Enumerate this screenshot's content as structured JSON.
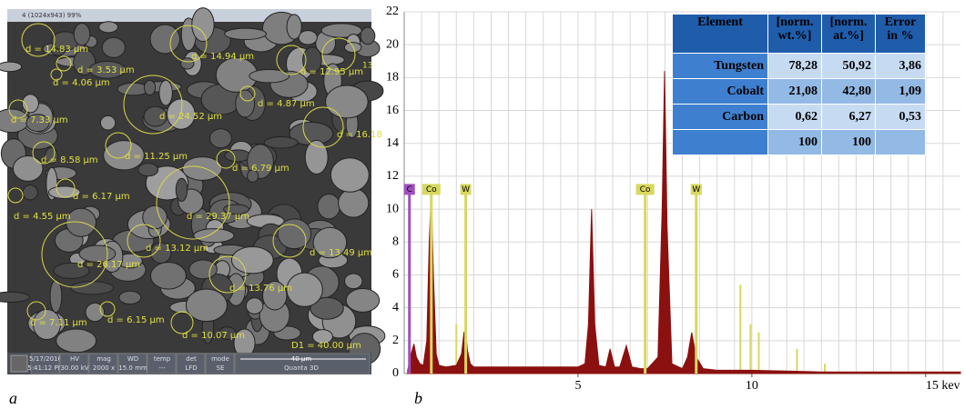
{
  "sem": {
    "window_title": "4 (1024x943) 99%",
    "annotations": [
      "d = 14.83 µm",
      "d = 3.53 µm",
      "d = 4.06 µm",
      "d = 14.94 µm",
      "d = 12.95 µm",
      "13",
      "d = 7.33 µm",
      "d = 24.52 µm",
      "d = 4.87 µm",
      "d = 16.18",
      "d = 8.58 µm",
      "d = 11.25 µm",
      "d = 6.79 µm",
      "d = 6.17 µm",
      "d = 4.55 µm",
      "d = 29.37 µm",
      "d = 13.12 µm",
      "d = 13.49 µm",
      "d = 26.17 µm",
      "d = 13.76 µm",
      "d = 7.11 µm",
      "d = 6.15 µm",
      "d = 10.07 µm",
      "D1 = 40.00 µm"
    ],
    "info": [
      [
        "5/17/2016",
        "5:41:12 PM"
      ],
      [
        "HV",
        "30.00 kV"
      ],
      [
        "mag",
        "2000 x"
      ],
      [
        "WD",
        "15.0 mm"
      ],
      [
        "temp",
        "---"
      ],
      [
        "det",
        "LFD"
      ],
      [
        "mode",
        "SE"
      ]
    ],
    "scale_bar": "40 µm",
    "instrument": "Quanta 3D"
  },
  "panel_labels": [
    "a",
    "b"
  ],
  "chart_data": {
    "type": "area",
    "x": [
      0.1,
      0.2,
      0.28,
      0.35,
      0.45,
      0.55,
      0.65,
      0.72,
      0.78,
      0.84,
      0.92,
      1.0,
      1.2,
      1.5,
      1.65,
      1.72,
      1.77,
      1.82,
      1.9,
      2.0,
      2.5,
      3,
      4,
      5,
      5.2,
      5.3,
      5.39,
      5.48,
      5.6,
      5.8,
      5.92,
      6.05,
      6.2,
      6.39,
      6.55,
      6.8,
      7.0,
      7.3,
      7.42,
      7.49,
      7.56,
      7.7,
      8.0,
      8.15,
      8.27,
      8.4,
      8.6,
      9,
      10,
      11,
      12,
      13,
      14,
      15,
      16
    ],
    "series": [
      {
        "color": "#8b1010",
        "values": [
          0.2,
          1.2,
          1.8,
          1.0,
          0.6,
          0.5,
          2.0,
          8,
          11,
          6,
          1.2,
          0.5,
          0.4,
          0.5,
          1.2,
          2.5,
          2.5,
          1.4,
          0.6,
          0.4,
          0.4,
          0.4,
          0.4,
          0.4,
          0.6,
          3,
          10,
          3,
          0.5,
          0.4,
          1.5,
          0.4,
          0.4,
          1.7,
          0.4,
          0.3,
          0.3,
          1,
          10,
          18.4,
          9,
          0.6,
          0.3,
          1,
          2.5,
          1,
          0.3,
          0.2,
          0.2,
          0.15,
          0.1,
          0.1,
          0.1,
          0.1,
          0.1
        ]
      }
    ],
    "markers": [
      {
        "label": "C",
        "x": 0.15,
        "height": 11.2,
        "color": "#a050c0"
      },
      {
        "label": "Co",
        "x": 0.78,
        "height": 11.2,
        "color": "#d8d860"
      },
      {
        "label": "W",
        "x": 1.77,
        "height": 11.2,
        "color": "#d8d860"
      },
      {
        "label": "Co",
        "x": 6.93,
        "height": 11.2,
        "color": "#d8d860"
      },
      {
        "label": "W",
        "x": 8.4,
        "height": 11.2,
        "color": "#d8d860"
      }
    ],
    "lines": [
      {
        "x": 9.67,
        "height": 5.4
      },
      {
        "x": 9.96,
        "height": 3.0
      },
      {
        "x": 10.2,
        "height": 2.5
      },
      {
        "x": 11.3,
        "height": 1.5
      },
      {
        "x": 12.1,
        "height": 0.6
      },
      {
        "x": 1.5,
        "height": 3.0
      }
    ],
    "line_color": "#d8d860",
    "xlim": [
      0,
      16
    ],
    "ylim": [
      0,
      22
    ],
    "xticks": [
      5,
      10,
      {
        "value": 15,
        "label": "15 kev"
      }
    ],
    "yticks": [
      0,
      2,
      4,
      6,
      8,
      10,
      12,
      14,
      16,
      18,
      20,
      22
    ],
    "grid": true,
    "xgrid_step": 0.5
  },
  "table": {
    "header": [
      "Element",
      "[norm. wt.%]",
      "[norm. at.%]",
      "Error in %"
    ],
    "rows": [
      [
        "Tungsten",
        "78,28",
        "50,92",
        "3,86"
      ],
      [
        "Cobalt",
        "21,08",
        "42,80",
        "1,09"
      ],
      [
        "Carbon",
        "0,62",
        "6,27",
        "0,53"
      ],
      [
        null,
        "100",
        "100",
        null
      ]
    ]
  }
}
